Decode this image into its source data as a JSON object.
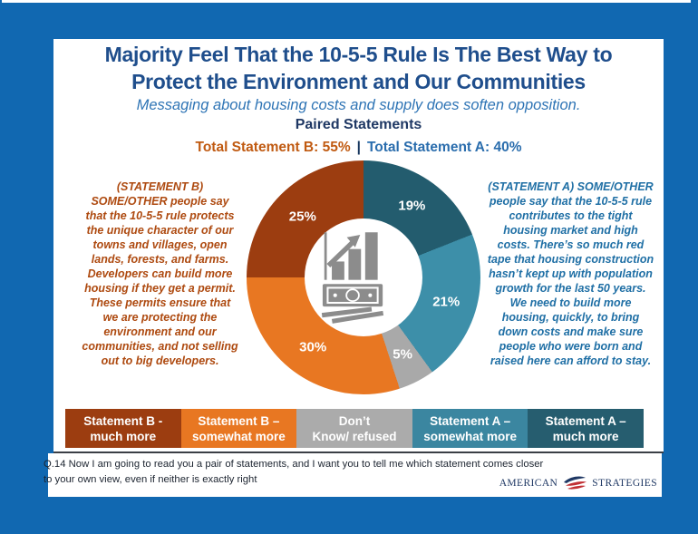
{
  "colors": {
    "frame_blue": "#1168B1",
    "title_navy": "#1F4E8C",
    "subtitle_blue": "#2E74B5",
    "section_navy": "#1F3864",
    "total_b_rust": "#C05A11",
    "total_a_blue": "#2A6DAD",
    "statement_b_rust": "#AE4A10",
    "statement_a_blue": "#1F6FA5",
    "logo_navy": "#1F3864",
    "logo_red": "#C13034"
  },
  "header": {
    "title": "Majority Feel That the 10-5-5 Rule Is The Best Way to\nProtect the Environment and Our Communities",
    "subtitle": "Messaging about housing costs and supply does soften opposition.",
    "section_label": "Paired Statements",
    "total_b": "Total Statement B: 55%",
    "separator": "|",
    "total_a": "Total Statement A: 40%"
  },
  "statements": {
    "b": "(STATEMENT B)\nSOME/OTHER people say\nthat the 10-5-5 rule protects\nthe unique character of our\ntowns and villages, open\nlands, forests, and farms.\nDevelopers can build more\nhousing if they get a permit.\nThese permits ensure that\nwe are protecting the\nenvironment and our\ncommunities, and not selling\nout to big developers.",
    "a": "(STATEMENT A) SOME/OTHER\npeople say that the 10-5-5 rule\ncontributes to the tight\nhousing market and high\ncosts. There’s so much red\ntape that housing construction\nhasn’t kept up with population\ngrowth for the last 50 years.\nWe need to build more\nhousing, quickly, to bring\ndown costs and make sure\npeople who were born and\nraised here can afford to stay."
  },
  "chart_data": {
    "type": "pie",
    "subtype": "donut",
    "title": "Paired Statements",
    "rotation": "clockwise-from-top",
    "segments": [
      {
        "label": "Statement A – much more",
        "value": 19,
        "display": "19%",
        "color": "#235C6E"
      },
      {
        "label": "Statement A – somewhat more",
        "value": 21,
        "display": "21%",
        "color": "#3D8FA9"
      },
      {
        "label": "Don’t Know/ refused",
        "value": 5,
        "display": "5%",
        "color": "#A9A9A9"
      },
      {
        "label": "Statement B – somewhat more",
        "value": 30,
        "display": "30%",
        "color": "#E87722"
      },
      {
        "label": "Statement B - much more",
        "value": 25,
        "display": "25%",
        "color": "#9C3D10"
      }
    ],
    "totals": {
      "Total Statement B": "55%",
      "Total Statement A": "40%"
    },
    "center_icon": "growth-money-icon",
    "legend_position": "bottom"
  },
  "legend": {
    "items": [
      {
        "label": "Statement B -\nmuch more",
        "color": "#9C3D10"
      },
      {
        "label": "Statement B –\nsomewhat more",
        "color": "#E87722"
      },
      {
        "label": "Don’t\nKnow/ refused",
        "color": "#ABABAB"
      },
      {
        "label": "Statement A –\nsomewhat more",
        "color": "#3B86A0"
      },
      {
        "label": "Statement A –\nmuch more",
        "color": "#265D6F"
      }
    ]
  },
  "footer": {
    "question": "Q.14 Now I am going to read you a pair of statements, and I want you to tell me which statement comes closer\nto your own view, even if neither is exactly right",
    "logo": {
      "left": "AMERICAN",
      "right": "STRATEGIES"
    }
  }
}
